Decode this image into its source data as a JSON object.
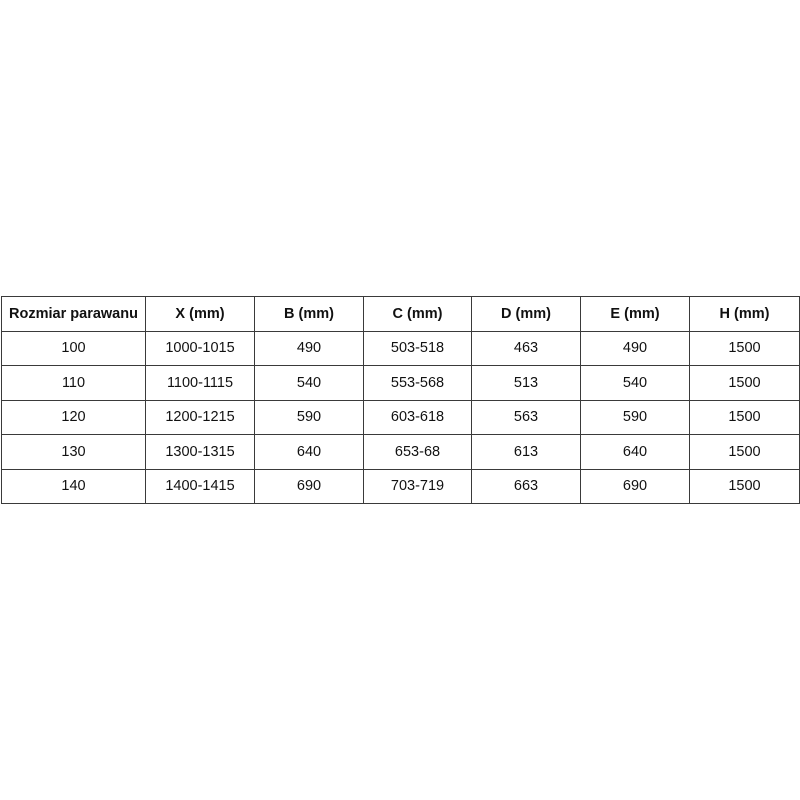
{
  "table": {
    "headers": [
      "Rozmiar parawanu",
      "X (mm)",
      "B (mm)",
      "C (mm)",
      "D (mm)",
      "E (mm)",
      "H (mm)"
    ],
    "rows": [
      [
        "100",
        "1000-1015",
        "490",
        "503-518",
        "463",
        "490",
        "1500"
      ],
      [
        "110",
        "1100-1115",
        "540",
        "553-568",
        "513",
        "540",
        "1500"
      ],
      [
        "120",
        "1200-1215",
        "590",
        "603-618",
        "563",
        "590",
        "1500"
      ],
      [
        "130",
        "1300-1315",
        "640",
        "653-68",
        "613",
        "640",
        "1500"
      ],
      [
        "140",
        "1400-1415",
        "690",
        "703-719",
        "663",
        "690",
        "1500"
      ]
    ]
  }
}
